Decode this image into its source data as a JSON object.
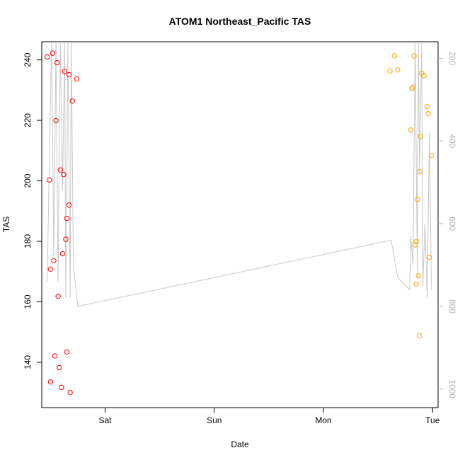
{
  "chart_data": {
    "type": "scatter",
    "title": "ATOM1 Northeast_Pacific TAS",
    "xlabel": "Date",
    "ylabel": "TAS",
    "x_ticks": [
      "Sat",
      "Sun",
      "Mon",
      "Tue"
    ],
    "x_tick_positions": [
      1.0,
      2.0,
      3.0,
      4.0
    ],
    "xlim": [
      0.42,
      4.05
    ],
    "ylim": [
      125,
      246
    ],
    "y_ticks": [
      140,
      160,
      180,
      200,
      220,
      240
    ],
    "y2_ticks": [
      200,
      400,
      600,
      800,
      1000
    ],
    "y2lim": [
      1045,
      160
    ],
    "y2_label_color": "#b3b3b3",
    "grid": false,
    "series": [
      {
        "color": "#ff0000",
        "marker": "open-circle",
        "points": [
          {
            "x": 0.47,
            "y": 241.0
          },
          {
            "x": 0.49,
            "y": 200.3
          },
          {
            "x": 0.5,
            "y": 133.5
          },
          {
            "x": 0.5,
            "y": 170.8
          },
          {
            "x": 0.52,
            "y": 242.2
          },
          {
            "x": 0.53,
            "y": 173.6
          },
          {
            "x": 0.54,
            "y": 142.1
          },
          {
            "x": 0.55,
            "y": 219.9
          },
          {
            "x": 0.56,
            "y": 239.1
          },
          {
            "x": 0.57,
            "y": 161.8
          },
          {
            "x": 0.58,
            "y": 138.2
          },
          {
            "x": 0.59,
            "y": 203.6
          },
          {
            "x": 0.6,
            "y": 131.7
          },
          {
            "x": 0.61,
            "y": 175.9
          },
          {
            "x": 0.62,
            "y": 202.1
          },
          {
            "x": 0.63,
            "y": 236.2
          },
          {
            "x": 0.64,
            "y": 180.7
          },
          {
            "x": 0.65,
            "y": 143.4
          },
          {
            "x": 0.65,
            "y": 187.6
          },
          {
            "x": 0.67,
            "y": 235.1
          },
          {
            "x": 0.67,
            "y": 192.0
          },
          {
            "x": 0.68,
            "y": 130.0
          },
          {
            "x": 0.7,
            "y": 226.4
          },
          {
            "x": 0.74,
            "y": 233.7
          }
        ]
      },
      {
        "color": "#ffa500",
        "marker": "open-circle",
        "points": [
          {
            "x": 3.61,
            "y": 236.3
          },
          {
            "x": 3.65,
            "y": 241.4
          },
          {
            "x": 3.68,
            "y": 236.7
          },
          {
            "x": 3.8,
            "y": 216.8
          },
          {
            "x": 3.81,
            "y": 230.5
          },
          {
            "x": 3.82,
            "y": 231.0
          },
          {
            "x": 3.83,
            "y": 241.3
          },
          {
            "x": 3.84,
            "y": 178.8
          },
          {
            "x": 3.85,
            "y": 165.8
          },
          {
            "x": 3.85,
            "y": 179.9
          },
          {
            "x": 3.86,
            "y": 193.9
          },
          {
            "x": 3.87,
            "y": 168.6
          },
          {
            "x": 3.88,
            "y": 148.8
          },
          {
            "x": 3.88,
            "y": 203.0
          },
          {
            "x": 3.89,
            "y": 214.7
          },
          {
            "x": 3.9,
            "y": 235.6
          },
          {
            "x": 3.92,
            "y": 234.8
          },
          {
            "x": 3.95,
            "y": 224.6
          },
          {
            "x": 3.96,
            "y": 222.2
          },
          {
            "x": 3.97,
            "y": 174.7
          },
          {
            "x": 3.99,
            "y": 208.4
          }
        ]
      },
      {
        "color": "#c8c8c8",
        "marker": "line",
        "axis": "right",
        "points": [
          {
            "x": 0.47,
            "y": 740
          },
          {
            "x": 0.49,
            "y": 440
          },
          {
            "x": 0.51,
            "y": 160
          },
          {
            "x": 0.53,
            "y": 680
          },
          {
            "x": 0.55,
            "y": 160
          },
          {
            "x": 0.57,
            "y": 740
          },
          {
            "x": 0.59,
            "y": 160
          },
          {
            "x": 0.61,
            "y": 520
          },
          {
            "x": 0.63,
            "y": 160
          },
          {
            "x": 0.64,
            "y": 780
          },
          {
            "x": 0.66,
            "y": 160
          },
          {
            "x": 0.68,
            "y": 780
          },
          {
            "x": 0.69,
            "y": 160
          },
          {
            "x": 0.71,
            "y": 700
          },
          {
            "x": 0.75,
            "y": 800
          },
          {
            "x": 3.62,
            "y": 640
          },
          {
            "x": 3.68,
            "y": 730
          },
          {
            "x": 3.79,
            "y": 760
          },
          {
            "x": 3.8,
            "y": 630
          },
          {
            "x": 3.82,
            "y": 700
          },
          {
            "x": 3.84,
            "y": 160
          },
          {
            "x": 3.86,
            "y": 730
          },
          {
            "x": 3.87,
            "y": 160
          },
          {
            "x": 3.88,
            "y": 480
          },
          {
            "x": 3.9,
            "y": 160
          },
          {
            "x": 3.91,
            "y": 750
          },
          {
            "x": 3.93,
            "y": 600
          },
          {
            "x": 3.95,
            "y": 780
          },
          {
            "x": 3.97,
            "y": 380
          },
          {
            "x": 3.99,
            "y": 760
          }
        ]
      }
    ]
  }
}
